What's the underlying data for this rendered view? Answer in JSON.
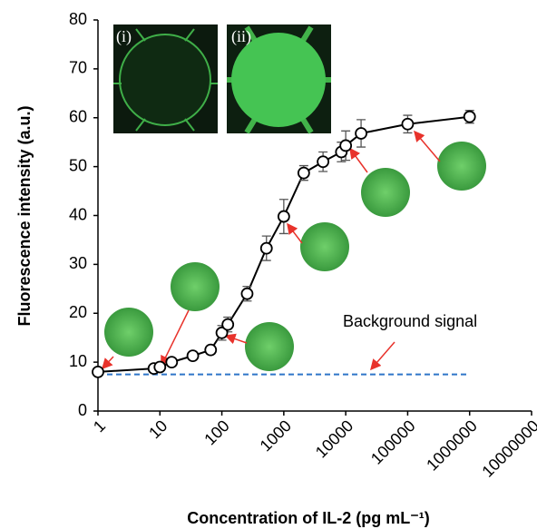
{
  "chart_data": {
    "type": "line",
    "x_label": "Concentration of IL-2 (pg mL⁻¹)",
    "y_label": "Fluorescence intensity (a.u.)",
    "x_scale": "log",
    "x": [
      1,
      8,
      10,
      15.5,
      34,
      66,
      100,
      125,
      256,
      525,
      1000,
      2100,
      4300,
      8500,
      10000,
      17700,
      100000,
      1000000
    ],
    "values": [
      8.0,
      8.7,
      9.0,
      10.0,
      11.3,
      12.5,
      16.0,
      17.7,
      24.0,
      33.3,
      39.8,
      48.7,
      51.0,
      53.0,
      54.3,
      56.8,
      58.7,
      60.2
    ],
    "errors": [
      0.5,
      0.5,
      0.5,
      0.5,
      0.6,
      0.8,
      1.5,
      1.5,
      1.5,
      2.5,
      3.5,
      1.5,
      2.0,
      2.0,
      3.0,
      2.8,
      1.8,
      1.3
    ],
    "color": "#000000",
    "reference_line": {
      "value": 7.5,
      "x": [
        1,
        1000000
      ],
      "color": "#2e75c8",
      "label": "Background signal"
    },
    "insets": [
      "(i)",
      "(ii)"
    ],
    "xlim": [
      1,
      10000000
    ],
    "xticks": [
      1,
      10,
      100,
      1000,
      10000,
      100000,
      1000000,
      10000000
    ],
    "ylim": [
      0,
      80
    ],
    "yticks": [
      0,
      10,
      20,
      30,
      40,
      50,
      60,
      70,
      80
    ]
  }
}
